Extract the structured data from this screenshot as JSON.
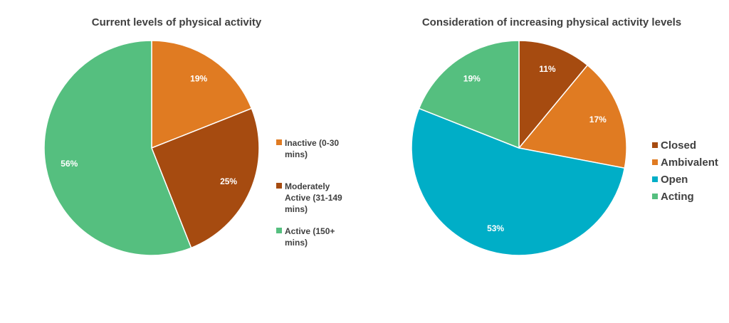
{
  "chart_data": [
    {
      "type": "pie",
      "title": "Current levels of physical activity",
      "slices": [
        {
          "label": "Inactive (0-30 mins)",
          "value": 19,
          "display": "19%",
          "color": "#E07B22"
        },
        {
          "label": "Moderately Active (31-149 mins)",
          "value": 25,
          "display": "25%",
          "color": "#A64B10"
        },
        {
          "label": "Active (150+ mins)",
          "value": 56,
          "display": "56%",
          "color": "#55BF7F"
        }
      ],
      "legend_lines": [
        [
          "Inactive (0-30",
          "mins)"
        ],
        [
          "Moderately",
          "Active (31-149",
          "mins)"
        ],
        [
          "Active (150+",
          "mins)"
        ]
      ],
      "legend_position": "right"
    },
    {
      "type": "pie",
      "title": "Consideration of increasing physical activity levels",
      "slices": [
        {
          "label": "Closed",
          "value": 11,
          "display": "11%",
          "color": "#A64B10"
        },
        {
          "label": "Ambivalent",
          "value": 17,
          "display": "17%",
          "color": "#E07B22"
        },
        {
          "label": "Open",
          "value": 53,
          "display": "53%",
          "color": "#00AEC7"
        },
        {
          "label": "Acting",
          "value": 19,
          "display": "19%",
          "color": "#55BF7F"
        }
      ],
      "legend_position": "right"
    }
  ]
}
